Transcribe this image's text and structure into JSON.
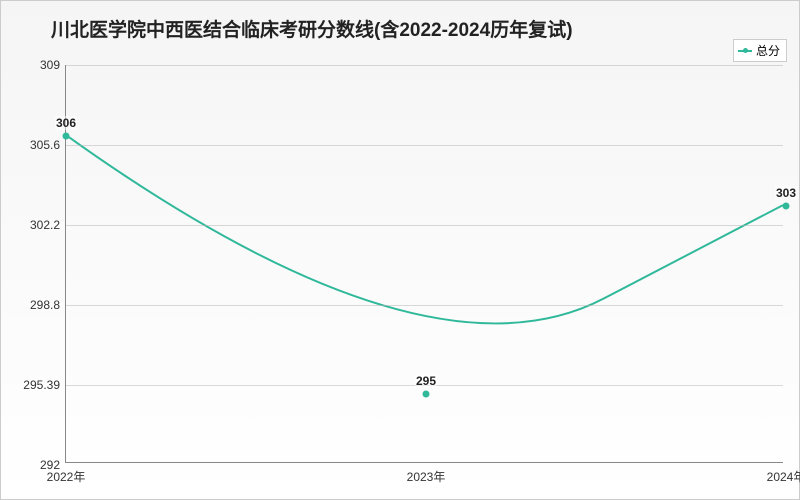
{
  "chart": {
    "type": "line",
    "title": "川北医学院中西医结合临床考研分数线(含2022-2024历年复试)",
    "title_fontsize": 19,
    "title_fontweight": "bold",
    "title_color": "#222222",
    "background_gradient": [
      "#f5f5f5",
      "#ffffff"
    ],
    "border_color": "#cccccc",
    "line_color": "#2fb89a",
    "line_width": 2,
    "marker_color": "#2fb89a",
    "marker_size": 7,
    "grid_color": "rgba(180,180,180,0.5)",
    "axis_color": "#888888",
    "label_fontsize": 12,
    "label_color": "#333333",
    "point_label_fontsize": 12,
    "point_label_fontweight": "bold",
    "point_label_color": "#222222",
    "curve_smooth": true,
    "ylim": [
      292,
      309
    ],
    "yticks": [
      292,
      295.39,
      298.8,
      302.2,
      305.6,
      309
    ],
    "ytick_labels": [
      "292",
      "295.39",
      "298.8",
      "302.2",
      "305.6",
      "309"
    ],
    "xcategories": [
      "2022年",
      "2023年",
      "2024年"
    ],
    "series": {
      "name": "总分",
      "values": [
        306,
        295,
        303
      ],
      "point_labels": [
        "306",
        "295",
        "303"
      ]
    },
    "legend": {
      "position": "top-right",
      "label": "总分",
      "fontsize": 12,
      "border_color": "#cccccc",
      "background": "#ffffff"
    }
  }
}
